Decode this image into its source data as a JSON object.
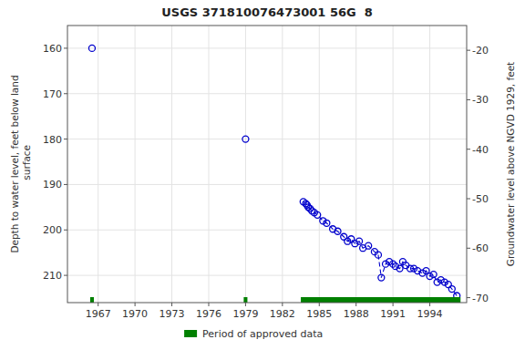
{
  "chart_data": {
    "type": "scatter",
    "title": "USGS 371810076473001 56G  8",
    "y_label": "Depth to water level, feet below land\n surface",
    "y2_label": "Groundwater level above NGVD 1929, feet",
    "xlim": [
      1964.5,
      1997.0
    ],
    "xticks": [
      1967,
      1970,
      1973,
      1976,
      1979,
      1982,
      1985,
      1988,
      1991,
      1994
    ],
    "ylim": [
      216,
      155
    ],
    "yticks": [
      160,
      170,
      180,
      190,
      200,
      210
    ],
    "y2lim": [
      -71,
      -15
    ],
    "y2ticks": [
      -20,
      -30,
      -40,
      -50,
      -60,
      -70
    ],
    "grid": true,
    "legend": "bottom",
    "series": [
      {
        "type": "line",
        "line_style": "dashed",
        "marker": "none",
        "color": "#0000cc",
        "x": [
          1983.7,
          1983.9,
          1984.0,
          1984.1,
          1984.25,
          1984.4,
          1984.6,
          1984.85,
          1985.3,
          1985.6,
          1986.1,
          1986.5,
          1987.0,
          1987.3,
          1987.6,
          1987.9,
          1988.25,
          1988.55,
          1989.0,
          1989.5,
          1989.8,
          1990.05,
          1990.4,
          1990.7,
          1991.0,
          1991.2,
          1991.55,
          1991.8,
          1992.05,
          1992.4,
          1992.7,
          1993.0,
          1993.4,
          1993.7,
          1994.0,
          1994.3,
          1994.6,
          1994.9,
          1995.2,
          1995.5,
          1995.8,
          1996.2
        ],
        "values": [
          193.8,
          194.2,
          194.5,
          195.0,
          195.3,
          195.8,
          196.2,
          196.7,
          198.0,
          198.5,
          199.8,
          200.3,
          201.5,
          202.5,
          202.0,
          203.0,
          202.5,
          204.0,
          203.5,
          204.8,
          205.5,
          210.5,
          207.5,
          207.0,
          207.5,
          208.0,
          208.5,
          207.0,
          207.8,
          208.5,
          208.5,
          209.0,
          209.5,
          209.0,
          210.2,
          209.8,
          211.5,
          211.0,
          211.5,
          212.0,
          213.0,
          214.5
        ]
      },
      {
        "type": "scatter",
        "marker": "circle",
        "color": "#0000cc",
        "x": [
          1966.5,
          1979.0,
          1983.7,
          1983.9,
          1984.0,
          1984.1,
          1984.25,
          1984.4,
          1984.6,
          1984.85,
          1985.3,
          1985.6,
          1986.1,
          1986.5,
          1987.0,
          1987.3,
          1987.6,
          1987.9,
          1988.25,
          1988.55,
          1989.0,
          1989.5,
          1989.8,
          1990.05,
          1990.4,
          1990.7,
          1991.0,
          1991.2,
          1991.55,
          1991.8,
          1992.05,
          1992.4,
          1992.7,
          1993.0,
          1993.4,
          1993.7,
          1994.0,
          1994.3,
          1994.6,
          1994.9,
          1995.2,
          1995.5,
          1995.8,
          1996.2
        ],
        "values": [
          160.0,
          180.0,
          193.8,
          194.2,
          194.5,
          195.0,
          195.3,
          195.8,
          196.2,
          196.7,
          198.0,
          198.5,
          199.8,
          200.3,
          201.5,
          202.5,
          202.0,
          203.0,
          202.5,
          204.0,
          203.5,
          204.8,
          205.5,
          210.5,
          207.5,
          207.0,
          207.5,
          208.0,
          208.5,
          207.0,
          207.8,
          208.5,
          208.5,
          209.0,
          209.5,
          209.0,
          210.2,
          209.8,
          211.5,
          211.0,
          211.5,
          212.0,
          213.0,
          214.5
        ]
      },
      {
        "name": "Period of approved data",
        "type": "span",
        "color": "#008000",
        "x_ranges": [
          [
            1966.35,
            1966.65
          ],
          [
            1978.85,
            1979.15
          ],
          [
            1983.5,
            1996.5
          ]
        ]
      }
    ]
  }
}
